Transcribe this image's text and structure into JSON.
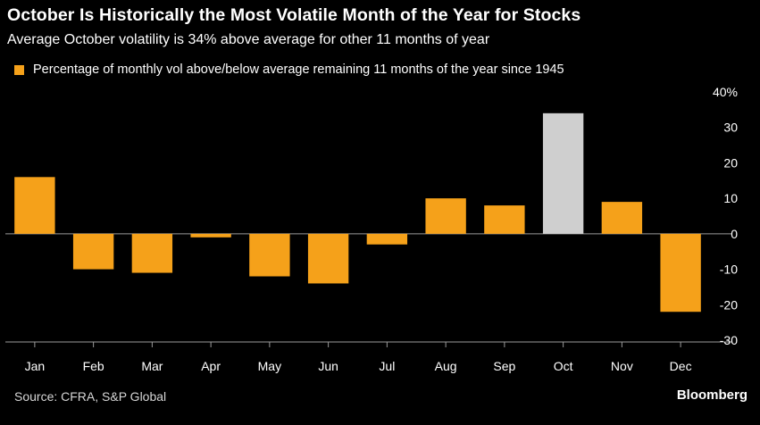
{
  "header": {
    "title": "October Is Historically the Most Volatile Month of the Year for Stocks",
    "subtitle": "Average October volatility is 34% above average for other 11 months of year"
  },
  "legend": {
    "label": "Percentage of monthly vol above/below average remaining 11 months of the year since 1945",
    "color": "#f5a11a"
  },
  "footer": {
    "source": "Source: CFRA, S&P Global",
    "brand": "Bloomberg"
  },
  "colors": {
    "bar": "#f5a11a",
    "highlight": "#cfcfcf",
    "axis": "#9a9a9a",
    "text": "#ffffff",
    "background": "#000000"
  },
  "chart_data": {
    "type": "bar",
    "title": "October Is Historically the Most Volatile Month of the Year for Stocks",
    "categories": [
      "Jan",
      "Feb",
      "Mar",
      "Apr",
      "May",
      "Jun",
      "Jul",
      "Aug",
      "Sep",
      "Oct",
      "Nov",
      "Dec"
    ],
    "values": [
      16,
      -10,
      -11,
      -1,
      -12,
      -14,
      -3,
      10,
      8,
      34,
      9,
      -22
    ],
    "highlight": "Oct",
    "yticks": [
      40,
      30,
      20,
      10,
      0,
      -10,
      -20,
      -30
    ],
    "ytick_labels": [
      "40%",
      "30",
      "20",
      "10",
      "0",
      "-10",
      "-20",
      "-30"
    ],
    "ylim": [
      -30,
      40
    ],
    "y_axis_side": "right",
    "xlabel": "",
    "ylabel": ""
  }
}
